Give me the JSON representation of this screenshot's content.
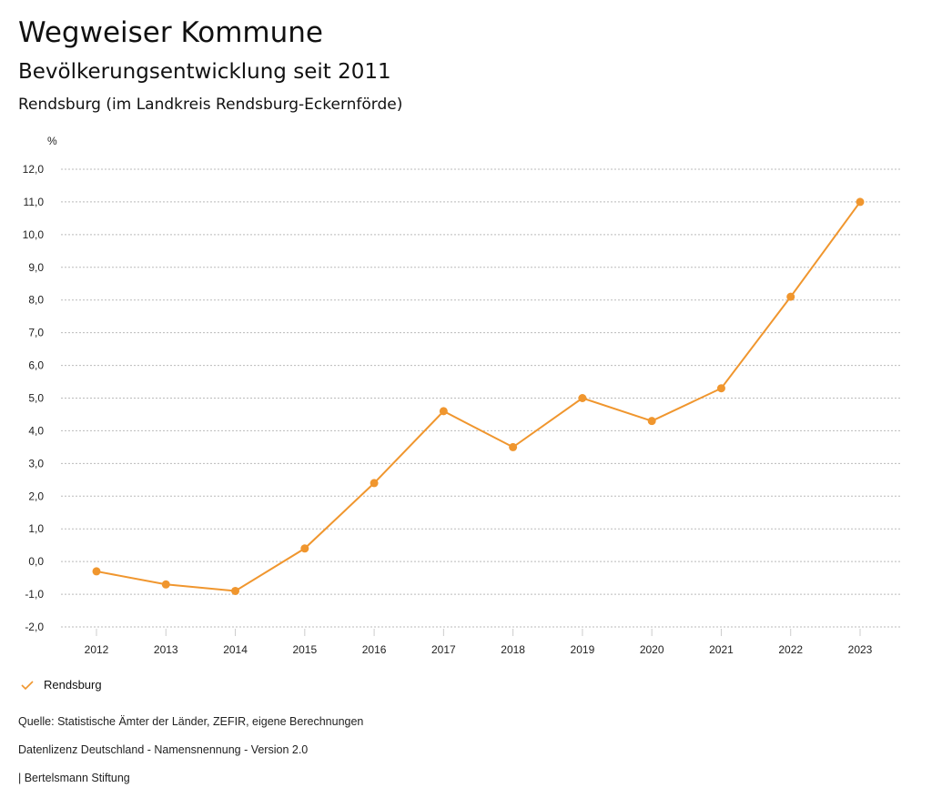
{
  "header": {
    "title": "Wegweiser Kommune",
    "subtitle": "Bevölkerungsentwicklung seit 2011",
    "region": "Rendsburg (im Landkreis Rendsburg-Eckernförde)"
  },
  "chart_data": {
    "type": "line",
    "ylabel": "%",
    "ylim": [
      -2,
      12
    ],
    "yticks": [
      -2,
      -1,
      0,
      1,
      2,
      3,
      4,
      5,
      6,
      7,
      8,
      9,
      10,
      11,
      12
    ],
    "ytick_labels": [
      "-2,0",
      "-1,0",
      "0,0",
      "1,0",
      "2,0",
      "3,0",
      "4,0",
      "5,0",
      "6,0",
      "7,0",
      "8,0",
      "9,0",
      "10,0",
      "11,0",
      "12,0"
    ],
    "categories": [
      "2012",
      "2013",
      "2014",
      "2015",
      "2016",
      "2017",
      "2018",
      "2019",
      "2020",
      "2021",
      "2022",
      "2023"
    ],
    "series": [
      {
        "name": "Rendsburg",
        "color": "#f0962e",
        "values": [
          -0.3,
          -0.7,
          -0.9,
          0.4,
          2.4,
          4.6,
          3.5,
          5.0,
          4.3,
          5.3,
          8.1,
          11.0
        ]
      }
    ],
    "grid": true,
    "legend_position": "bottom-left"
  },
  "legend": {
    "label": "Rendsburg"
  },
  "footer": {
    "source": "Quelle: Statistische Ämter der Länder, ZEFIR, eigene Berechnungen",
    "license": "Datenlizenz Deutschland - Namensnennung - Version 2.0",
    "publisher": "| Bertelsmann Stiftung"
  }
}
